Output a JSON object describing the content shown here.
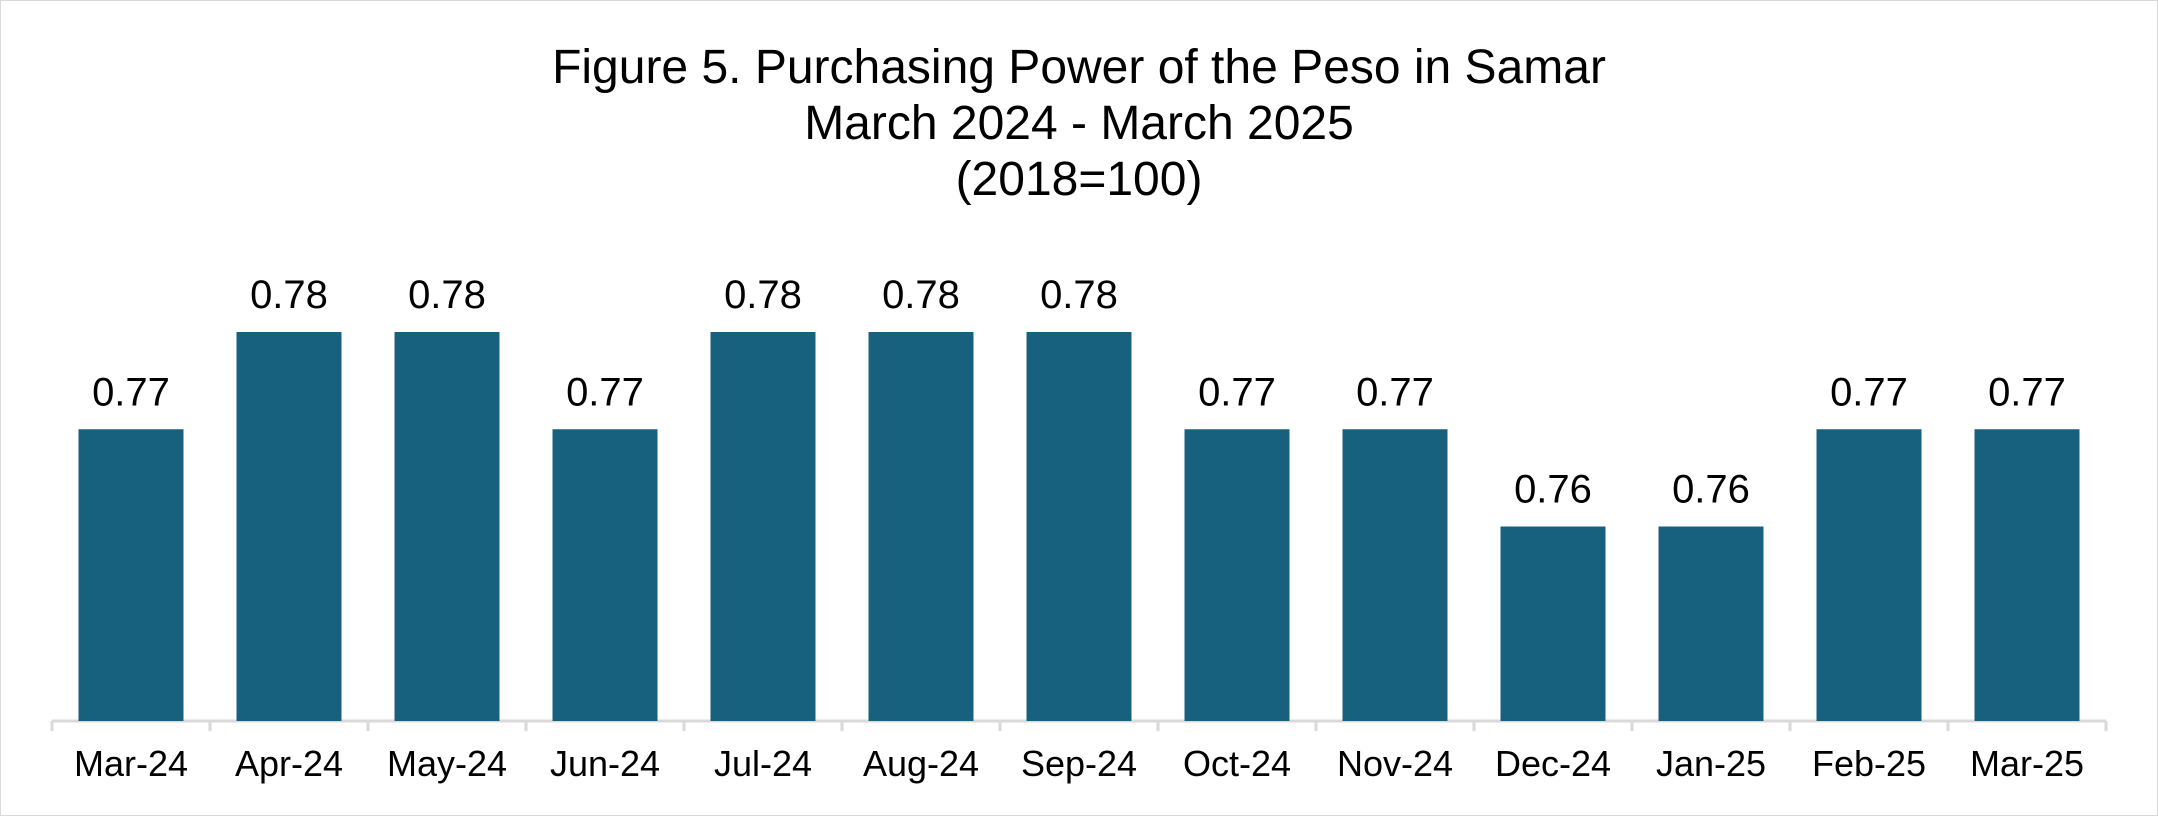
{
  "chart_data": {
    "type": "bar",
    "title": "Figure 5. Purchasing Power of the Peso in Samar",
    "subtitle": "March 2024 - March 2025",
    "base_note": "(2018=100)",
    "xlabel": "",
    "ylabel": "",
    "categories": [
      "Mar-24",
      "Apr-24",
      "May-24",
      "Jun-24",
      "Jul-24",
      "Aug-24",
      "Sep-24",
      "Oct-24",
      "Nov-24",
      "Dec-24",
      "Jan-25",
      "Feb-25",
      "Mar-25"
    ],
    "values": [
      0.77,
      0.78,
      0.78,
      0.77,
      0.78,
      0.78,
      0.78,
      0.77,
      0.77,
      0.76,
      0.76,
      0.77,
      0.77
    ],
    "data_labels": [
      "0.77",
      "0.78",
      "0.78",
      "0.77",
      "0.78",
      "0.78",
      "0.78",
      "0.77",
      "0.77",
      "0.76",
      "0.76",
      "0.77",
      "0.77"
    ],
    "ylim": [
      0.74,
      0.78
    ],
    "y_axis_visible": false,
    "grid": false,
    "legend": "none",
    "bar_color": "#17617F",
    "axis_color": "#d9d9d9"
  }
}
